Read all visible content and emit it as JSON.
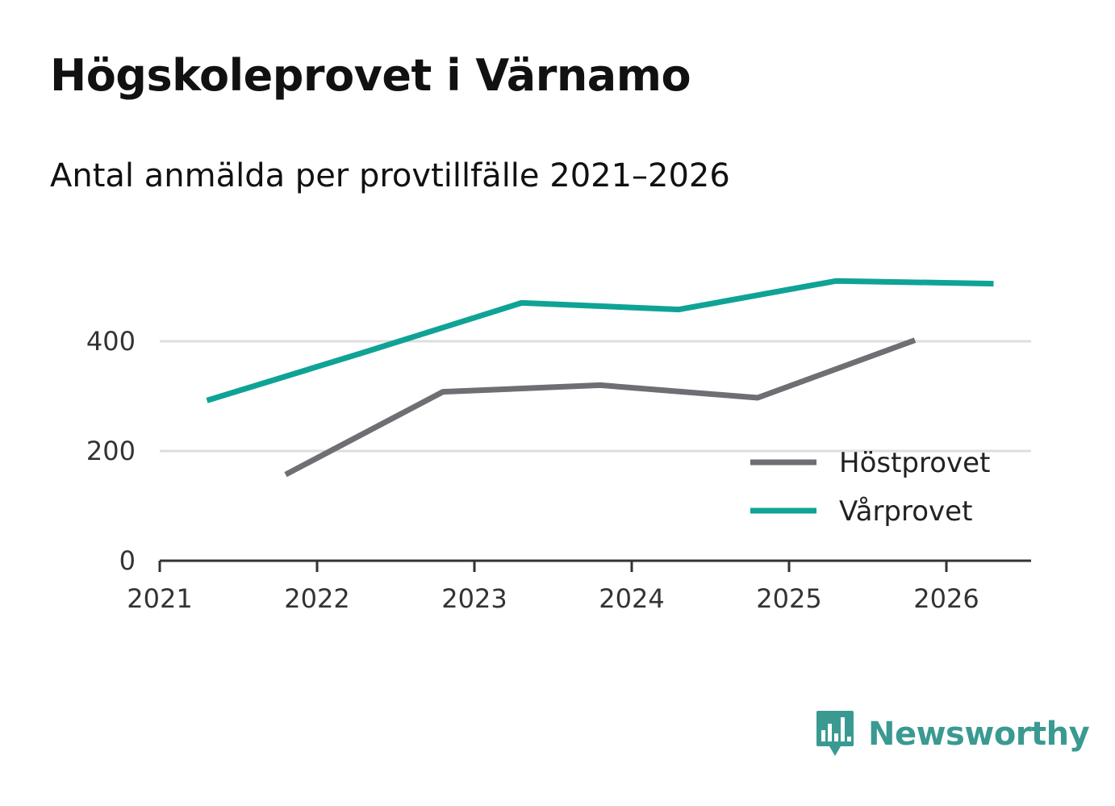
{
  "title": "Högskoleprovet i Värnamo",
  "subtitle": "Antal anmälda per provtillfälle 2021–2026",
  "brand": {
    "name": "Newsworthy"
  },
  "colors": {
    "hostprovet": "#6e6e73",
    "varprovet": "#0fa396",
    "grid": "#dddddd",
    "axis": "#333333"
  },
  "chart_data": {
    "type": "line",
    "title": "Högskoleprovet i Värnamo",
    "subtitle": "Antal anmälda per provtillfälle 2021–2026",
    "xlabel": "",
    "ylabel": "",
    "xlim": [
      2021,
      2026.55
    ],
    "ylim": [
      0,
      550
    ],
    "x_ticks": [
      "2021",
      "2022",
      "2023",
      "2024",
      "2025",
      "2026"
    ],
    "y_ticks": [
      "0",
      "200",
      "400"
    ],
    "grid": true,
    "legend_position": "bottom-right",
    "series": [
      {
        "name": "Höstprovet",
        "color": "#6e6e73",
        "x": [
          2021.8,
          2022.8,
          2023.8,
          2024.8,
          2025.8
        ],
        "values": [
          157,
          308,
          320,
          297,
          402
        ]
      },
      {
        "name": "Vårprovet",
        "color": "#0fa396",
        "x": [
          2021.3,
          2022.3,
          2023.3,
          2024.3,
          2025.3,
          2026.3
        ],
        "values": [
          292,
          380,
          470,
          458,
          510,
          505
        ]
      }
    ]
  }
}
